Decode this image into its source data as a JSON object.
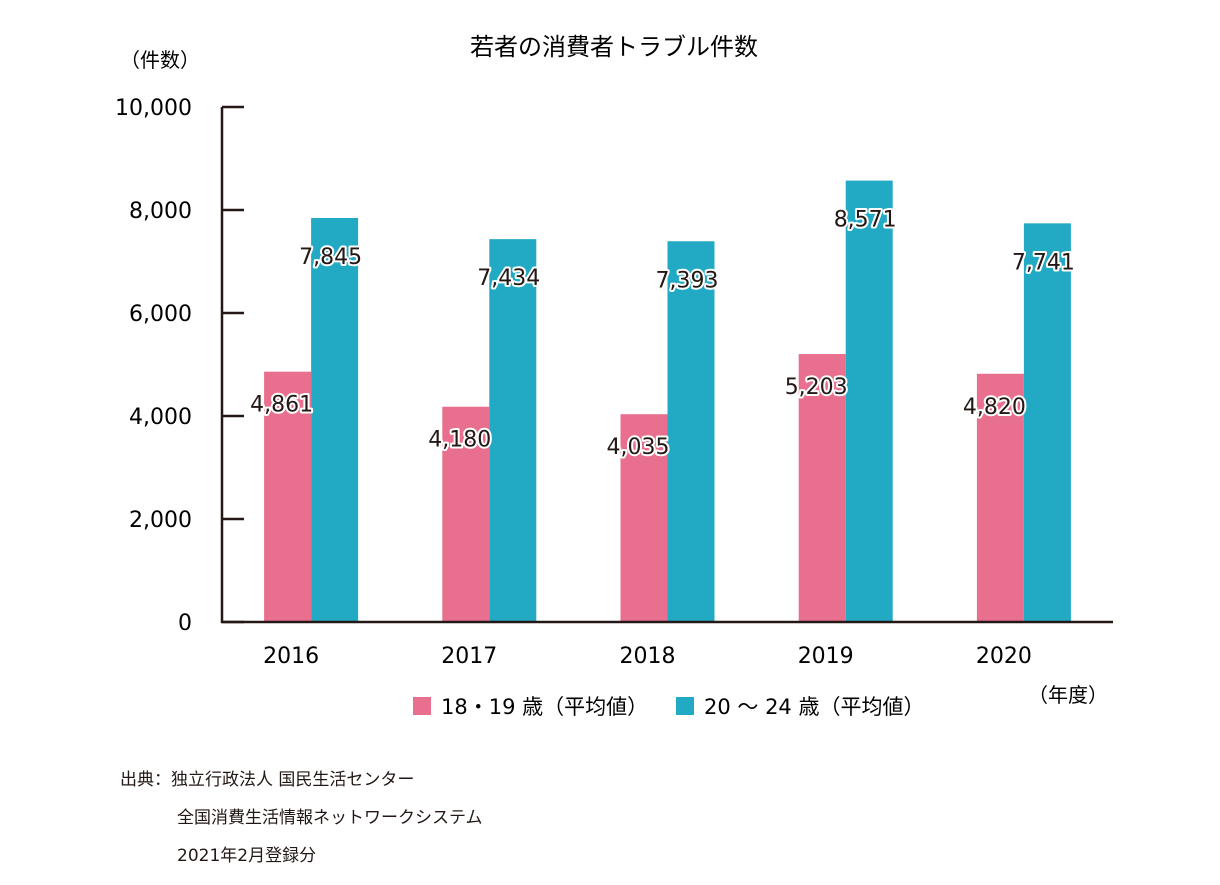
{
  "chart_data": {
    "type": "bar",
    "title": "若者の消費者トラブル件数",
    "ylabel": "（件数）",
    "xlabel": "（年度）",
    "categories": [
      "2016",
      "2017",
      "2018",
      "2019",
      "2020"
    ],
    "ylim": [
      0,
      10000
    ],
    "yticks": [
      "0",
      "2,000",
      "4,000",
      "6,000",
      "8,000",
      "10,000"
    ],
    "yticks_values": [
      0,
      2000,
      4000,
      6000,
      8000,
      10000
    ],
    "grid": false,
    "legend_position": "bottom",
    "series": [
      {
        "name": "18・19 歳（平均値）",
        "color": "#e96f8e",
        "values": [
          4861,
          4180,
          4035,
          5203,
          4820
        ],
        "labels": [
          "4,861",
          "4,180",
          "4,035",
          "5,203",
          "4,820"
        ]
      },
      {
        "name": "20 〜 24 歳（平均値）",
        "color": "#22a9c4",
        "values": [
          7845,
          7434,
          7393,
          8571,
          7741
        ],
        "labels": [
          "7,845",
          "7,434",
          "7,393",
          "8,571",
          "7,741"
        ]
      }
    ]
  },
  "source": {
    "line1": "出典：独立行政法人 国民生活センター",
    "line2": "全国消費生活情報ネットワークシステム",
    "line3": "2021年2月登録分"
  }
}
